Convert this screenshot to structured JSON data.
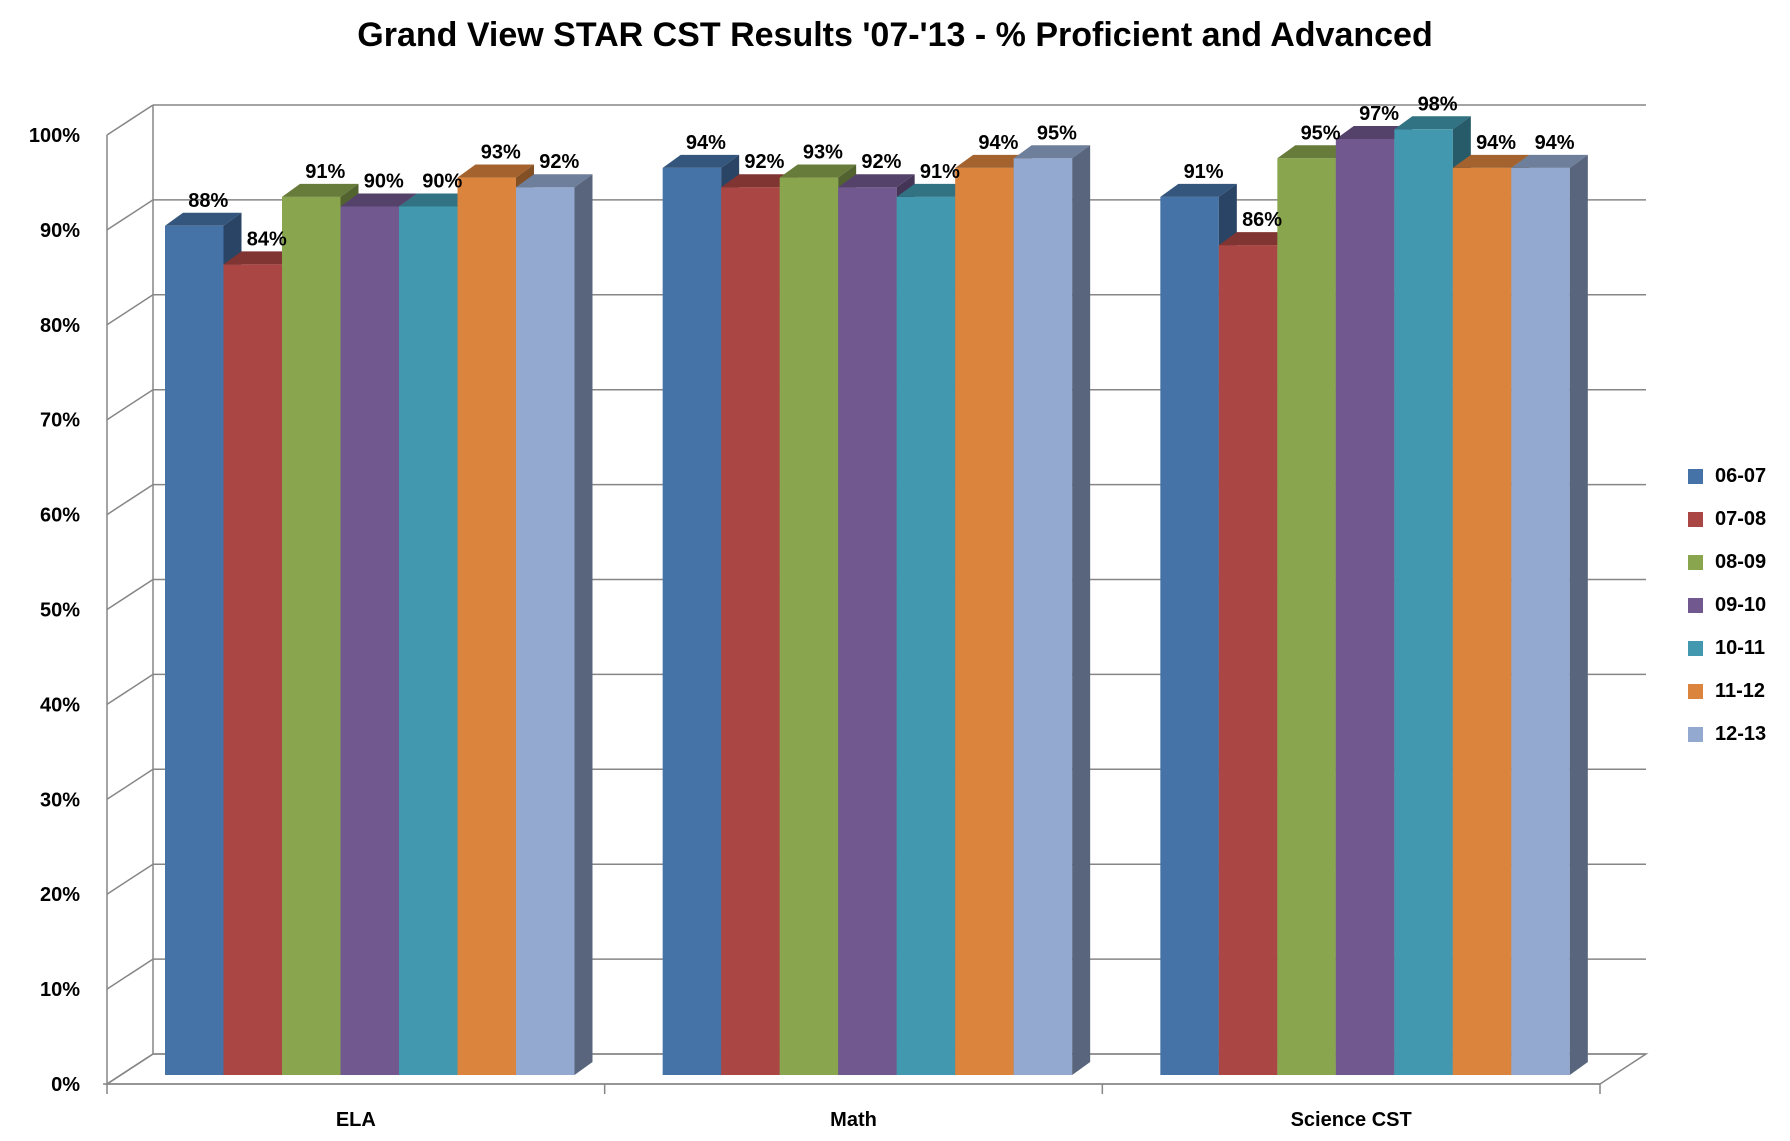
{
  "chart_data": {
    "type": "bar",
    "title": "Grand View STAR CST Results '07-'13 - % Proficient and Advanced",
    "xlabel": "",
    "ylabel": "",
    "categories": [
      "ELA",
      "Math",
      "Science CST"
    ],
    "ylim": [
      0,
      100
    ],
    "yticks": [
      "0%",
      "10%",
      "20%",
      "30%",
      "40%",
      "50%",
      "60%",
      "70%",
      "80%",
      "90%",
      "100%"
    ],
    "grid": true,
    "legend_position": "right",
    "series": [
      {
        "name": "06-07",
        "color": "#4572A7",
        "values": [
          88,
          94,
          91
        ],
        "labels": [
          "88%",
          "94%",
          "91%"
        ]
      },
      {
        "name": "07-08",
        "color": "#AA4643",
        "values": [
          84,
          92,
          86
        ],
        "labels": [
          "84%",
          "92%",
          "86%"
        ]
      },
      {
        "name": "08-09",
        "color": "#89A54E",
        "values": [
          91,
          93,
          95
        ],
        "labels": [
          "91%",
          "93%",
          "95%"
        ]
      },
      {
        "name": "09-10",
        "color": "#71588F",
        "values": [
          90,
          92,
          97
        ],
        "labels": [
          "90%",
          "92%",
          "97%"
        ]
      },
      {
        "name": "10-11",
        "color": "#4198AF",
        "values": [
          90,
          91,
          98
        ],
        "labels": [
          "90%",
          "91%",
          "98%"
        ]
      },
      {
        "name": "11-12",
        "color": "#DB843D",
        "values": [
          93,
          94,
          94
        ],
        "labels": [
          "93%",
          "94%",
          "94%"
        ]
      },
      {
        "name": "12-13",
        "color": "#93A9CF",
        "values": [
          92,
          95,
          94
        ],
        "labels": [
          "92%",
          "95%",
          "94%"
        ]
      }
    ]
  }
}
